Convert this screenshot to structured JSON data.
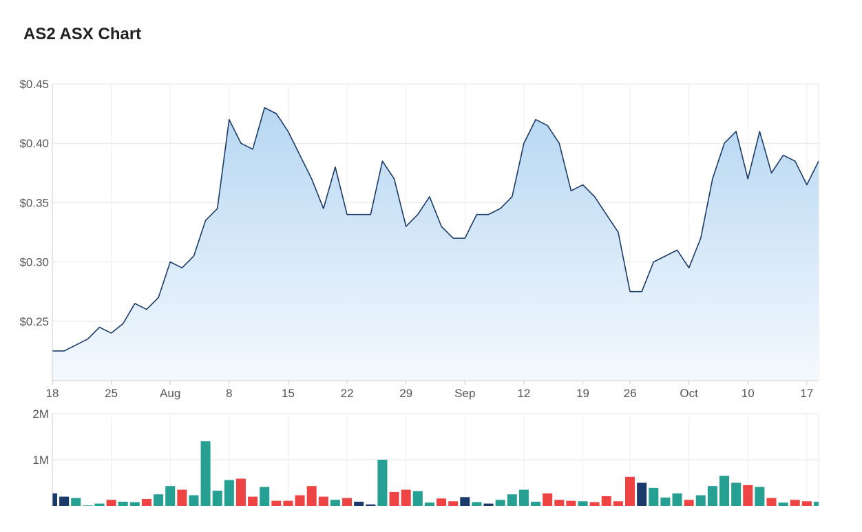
{
  "page": {
    "title": "AS2 ASX Chart"
  },
  "chart_data": [
    {
      "type": "area",
      "ylim": [
        0.2,
        0.45
      ],
      "y_ticks": [
        {
          "value": 0.45,
          "label": "$0.45"
        },
        {
          "value": 0.4,
          "label": "$0.40"
        },
        {
          "value": 0.35,
          "label": "$0.35"
        },
        {
          "value": 0.3,
          "label": "$0.30"
        },
        {
          "value": 0.25,
          "label": "$0.25"
        }
      ],
      "x_ticks": [
        {
          "index": 0,
          "label": "18"
        },
        {
          "index": 5,
          "label": "25"
        },
        {
          "index": 10,
          "label": "Aug"
        },
        {
          "index": 15,
          "label": "8"
        },
        {
          "index": 20,
          "label": "15"
        },
        {
          "index": 25,
          "label": "22"
        },
        {
          "index": 30,
          "label": "29"
        },
        {
          "index": 35,
          "label": "Sep"
        },
        {
          "index": 40,
          "label": "12"
        },
        {
          "index": 45,
          "label": "19"
        },
        {
          "index": 49,
          "label": "26"
        },
        {
          "index": 54,
          "label": "Oct"
        },
        {
          "index": 59,
          "label": "10"
        },
        {
          "index": 64,
          "label": "17"
        }
      ],
      "values": [
        0.225,
        0.225,
        0.23,
        0.235,
        0.245,
        0.24,
        0.248,
        0.265,
        0.26,
        0.27,
        0.3,
        0.295,
        0.305,
        0.335,
        0.345,
        0.42,
        0.4,
        0.395,
        0.43,
        0.425,
        0.41,
        0.39,
        0.37,
        0.345,
        0.38,
        0.34,
        0.34,
        0.34,
        0.385,
        0.37,
        0.33,
        0.34,
        0.355,
        0.33,
        0.32,
        0.32,
        0.34,
        0.34,
        0.345,
        0.355,
        0.4,
        0.42,
        0.415,
        0.4,
        0.36,
        0.365,
        0.355,
        0.34,
        0.325,
        0.275,
        0.275,
        0.3,
        0.305,
        0.31,
        0.295,
        0.32,
        0.37,
        0.4,
        0.41,
        0.37,
        0.41,
        0.375,
        0.39,
        0.385,
        0.365,
        0.385
      ],
      "colors": {
        "line": "#1a3a6b",
        "fill_top": "#b7d7f2",
        "fill_bottom": "#f4f9fe"
      }
    },
    {
      "type": "bar",
      "ylim": [
        0,
        2000000
      ],
      "y_ticks": [
        {
          "value": 2000000,
          "label": "2M"
        },
        {
          "value": 1000000,
          "label": "1M"
        }
      ],
      "values": [
        270000,
        200000,
        170000,
        10000,
        50000,
        130000,
        90000,
        80000,
        150000,
        250000,
        430000,
        350000,
        230000,
        1400000,
        330000,
        560000,
        590000,
        200000,
        410000,
        110000,
        110000,
        230000,
        430000,
        200000,
        130000,
        170000,
        90000,
        30000,
        1000000,
        300000,
        350000,
        320000,
        70000,
        160000,
        100000,
        190000,
        80000,
        50000,
        130000,
        250000,
        350000,
        90000,
        270000,
        130000,
        110000,
        100000,
        80000,
        210000,
        100000,
        630000,
        500000,
        390000,
        180000,
        270000,
        130000,
        230000,
        430000,
        650000,
        500000,
        450000,
        410000,
        170000,
        70000,
        130000,
        100000,
        90000
      ],
      "bar_colors": [
        "navy",
        "navy",
        "teal",
        "teal",
        "teal",
        "red",
        "teal",
        "teal",
        "red",
        "teal",
        "teal",
        "red",
        "teal",
        "teal",
        "teal",
        "teal",
        "red",
        "red",
        "teal",
        "red",
        "red",
        "red",
        "red",
        "red",
        "teal",
        "red",
        "navy",
        "navy",
        "teal",
        "red",
        "red",
        "teal",
        "teal",
        "red",
        "red",
        "navy",
        "teal",
        "navy",
        "teal",
        "teal",
        "teal",
        "teal",
        "red",
        "red",
        "red",
        "teal",
        "red",
        "red",
        "red",
        "red",
        "navy",
        "teal",
        "teal",
        "teal",
        "red",
        "teal",
        "teal",
        "teal",
        "teal",
        "red",
        "teal",
        "red",
        "teal",
        "red",
        "red",
        "teal"
      ],
      "colors": {
        "teal": "#26a092",
        "red": "#ef4444",
        "navy": "#1a3a6b"
      }
    }
  ]
}
